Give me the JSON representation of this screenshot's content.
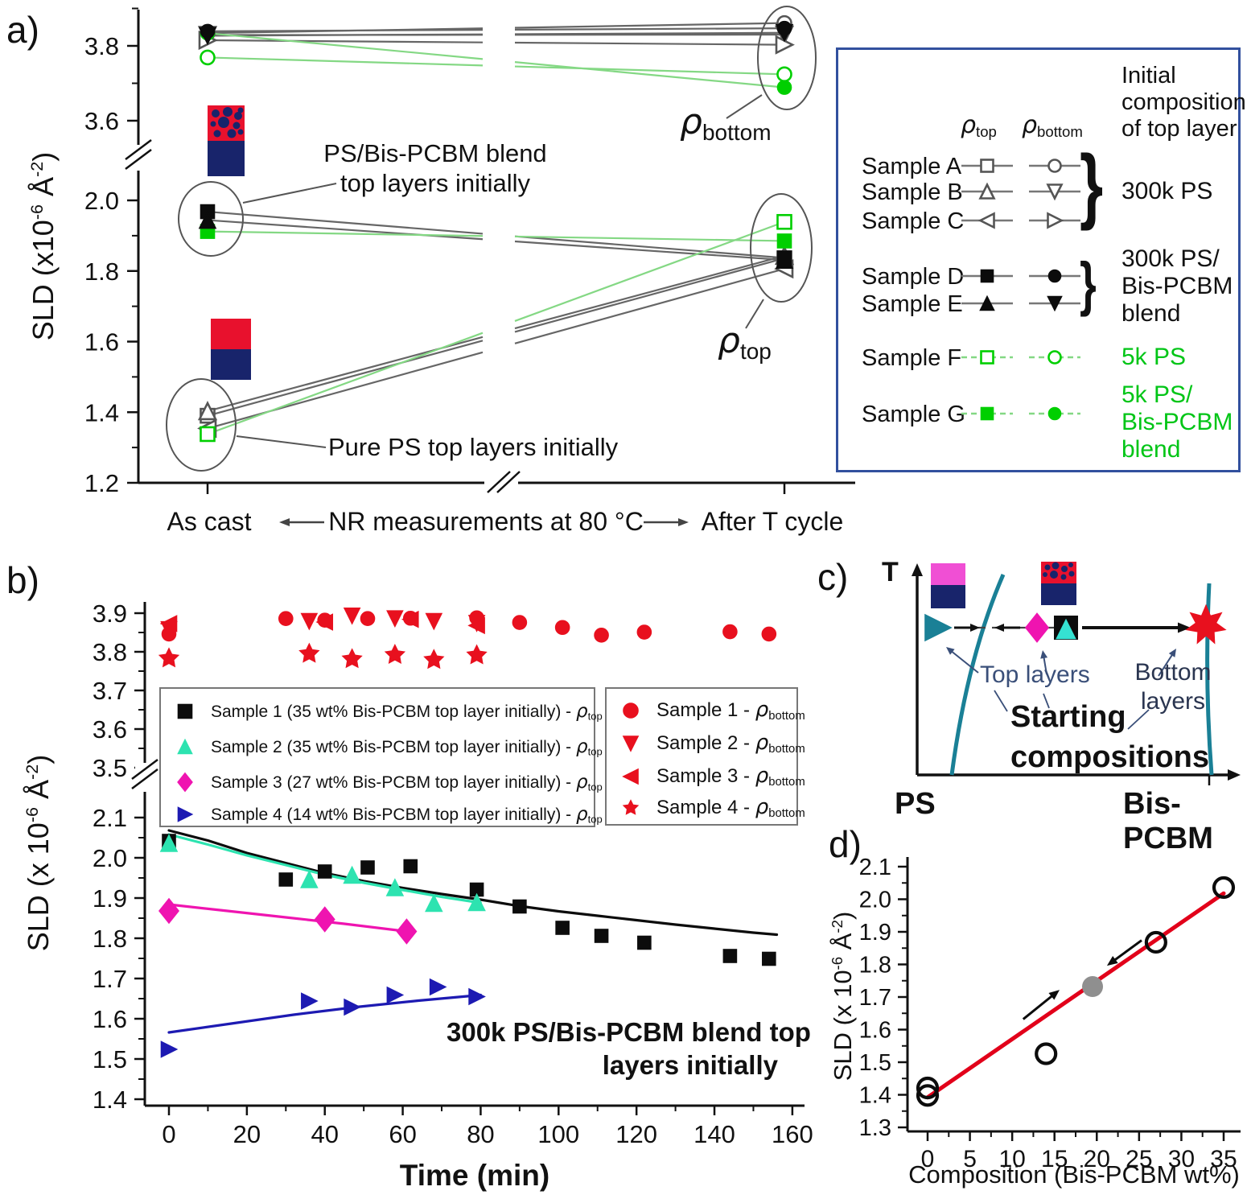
{
  "figure": {
    "colors": {
      "gray": "#666666",
      "gray_marker": "#555555",
      "black": "#0c0c0c",
      "green_line": "#84d884",
      "green": "#00cf00",
      "green_text": "#00c516",
      "red": "#e8101e",
      "red_dark": "#e8112d",
      "red_line": "#e2001a",
      "cyan": "#2de3b0",
      "magenta": "#ef14b0",
      "blue": "#1d1ab2",
      "teal": "#1a8096",
      "navy": "#18246b",
      "pink": "#f04fd4",
      "slate": "#3a4f79",
      "legend_border": "#32509e",
      "gray_point": "#8f8f8f"
    }
  },
  "panel_a": {
    "label": "a)",
    "y_title": {
      "p1": "SLD (x10",
      "s1": "-6",
      "p2": " Å",
      "s2": "-2",
      "p3": ")"
    },
    "x_axis": {
      "left": "As cast",
      "center": "NR measurements at 80 °C",
      "right": "After T cycle"
    },
    "ann_blend": {
      "l1": "PS/Bis-PCBM blend",
      "l2": "top layers initially"
    },
    "ann_pure": "Pure PS top layers initially",
    "rho_bottom": {
      "base": "ρ",
      "sub": "bottom"
    },
    "rho_top": {
      "base": "ρ",
      "sub": "top"
    },
    "legend": {
      "header_top": {
        "base": "ρ",
        "sub": "top"
      },
      "header_bottom": {
        "base": "ρ",
        "sub": "bottom"
      },
      "header_right": {
        "l1": "Initial",
        "l2": "composition",
        "l3": "of top layer"
      },
      "brace": "}",
      "rows": [
        {
          "name": "Sample A",
          "m_top": "square-open",
          "m_bot": "circle-open",
          "color_key": "gray",
          "dashed": false
        },
        {
          "name": "Sample B",
          "m_top": "tri-up-open",
          "m_bot": "tri-down-open",
          "color_key": "gray",
          "dashed": false
        },
        {
          "name": "Sample C",
          "m_top": "tri-left-open",
          "m_bot": "tri-right-open",
          "color_key": "gray",
          "dashed": false
        },
        {
          "name": "Sample D",
          "m_top": "square",
          "m_bot": "circle",
          "color_key": "black",
          "dashed": false
        },
        {
          "name": "Sample E",
          "m_top": "tri-up",
          "m_bot": "tri-down",
          "color_key": "black",
          "dashed": false
        },
        {
          "name": "Sample F",
          "m_top": "square-open",
          "m_bot": "circle-open",
          "color_key": "green",
          "dashed": true
        },
        {
          "name": "Sample G",
          "m_top": "square",
          "m_bot": "circle",
          "color_key": "green",
          "dashed": true
        }
      ],
      "groups": [
        {
          "lines": [
            "300k PS"
          ],
          "green": false
        },
        {
          "lines": [
            "300k PS/",
            "Bis-PCBM",
            "blend"
          ],
          "green": false
        },
        {
          "lines": [
            "5k PS"
          ],
          "green": true
        },
        {
          "lines": [
            "5k PS/",
            "Bis-PCBM",
            "blend"
          ],
          "green": true
        }
      ]
    }
  },
  "panel_b": {
    "label": "b)",
    "y_title": {
      "p1": "SLD (x 10",
      "s1": "-6",
      "p2": " Å",
      "s2": "-2",
      "p3": ")"
    },
    "x_title": "Time (min)",
    "ann": {
      "l1": "300k PS/Bis-PCBM blend top",
      "l2": "layers initially"
    },
    "legend_left": {
      "rows": [
        {
          "marker": "square",
          "color_key": "black",
          "label": "Sample 1 (35 wt% Bis-PCBM top layer initially) - ",
          "rho": "ρ",
          "rho_sub": "top"
        },
        {
          "marker": "tri-up",
          "color_key": "cyan",
          "label": "Sample 2 (35 wt% Bis-PCBM top layer initially) - ",
          "rho": "ρ",
          "rho_sub": "top"
        },
        {
          "marker": "diamond",
          "color_key": "magenta",
          "label": "Sample 3 (27 wt% Bis-PCBM top layer initially) - ",
          "rho": "ρ",
          "rho_sub": "top"
        },
        {
          "marker": "tri-right",
          "color_key": "blue",
          "label": "Sample 4 (14 wt% Bis-PCBM top layer initially) - ",
          "rho": "ρ",
          "rho_sub": "top"
        }
      ]
    },
    "legend_right": {
      "rows": [
        {
          "marker": "circle",
          "color_key": "red",
          "label": "Sample 1 - ",
          "rho": "ρ",
          "rho_sub": "bottom"
        },
        {
          "marker": "tri-down",
          "color_key": "red",
          "label": "Sample 2  - ",
          "rho": "ρ",
          "rho_sub": "bottom"
        },
        {
          "marker": "tri-left",
          "color_key": "red",
          "label": "Sample 3  - ",
          "rho": "ρ",
          "rho_sub": "bottom"
        },
        {
          "marker": "star",
          "color_key": "red",
          "label": "Sample 4  - ",
          "rho": "ρ",
          "rho_sub": "bottom"
        }
      ]
    }
  },
  "panel_c": {
    "label": "c)",
    "t": "T",
    "ps": "PS",
    "bis": "Bis-PCBM",
    "top_layers": "Top layers",
    "bottom_layers": {
      "l1": "Bottom",
      "l2": "layers"
    },
    "starting": {
      "l1": "Starting",
      "l2": "compositions"
    }
  },
  "panel_d": {
    "label": "d)",
    "y_title": {
      "p1": "SLD (x 10",
      "s1": "-6",
      "p2": " Å",
      "s2": "-2",
      "p3": ")"
    },
    "x_title": "Composition (Bis-PCBM wt%)"
  },
  "chart_data": [
    {
      "id": "a",
      "type": "line",
      "x_categories": [
        "As cast",
        "After T cycle"
      ],
      "ylabel": "SLD (x10-6 A-2)",
      "y_axis": {
        "broken": true,
        "upper_major": [
          3.8,
          3.6
        ],
        "upper_minor": [
          3.9,
          3.7
        ],
        "lower_major": [
          2.0,
          1.8,
          1.6,
          1.4,
          1.2
        ],
        "lower_minor": [
          1.9,
          1.7,
          1.5,
          1.3
        ]
      },
      "series": [
        {
          "sample": "A",
          "group": "300k PS",
          "color": "gray",
          "top": {
            "marker": "square-open",
            "as_cast": 1.39,
            "after": 1.836
          },
          "bottom": {
            "marker": "circle-open",
            "as_cast": 3.834,
            "after": 3.861
          }
        },
        {
          "sample": "B",
          "group": "300k PS",
          "color": "gray",
          "top": {
            "marker": "tri-up-open",
            "as_cast": 1.403,
            "after": 1.843
          },
          "bottom": {
            "marker": "tri-down-open",
            "as_cast": 3.829,
            "after": 3.83
          }
        },
        {
          "sample": "C",
          "group": "300k PS",
          "color": "gray",
          "top": {
            "marker": "tri-left-open",
            "as_cast": 1.354,
            "after": 1.806
          },
          "bottom": {
            "marker": "tri-right-open",
            "as_cast": 3.815,
            "after": 3.803
          }
        },
        {
          "sample": "D",
          "group": "300k PS/Bis-PCBM blend",
          "color": "black",
          "top": {
            "marker": "square",
            "as_cast": 1.968,
            "after": 1.837
          },
          "bottom": {
            "marker": "circle",
            "as_cast": 3.839,
            "after": 3.847
          }
        },
        {
          "sample": "E",
          "group": "300k PS/Bis-PCBM blend",
          "color": "black",
          "top": {
            "marker": "tri-up",
            "as_cast": 1.944,
            "after": 1.831
          },
          "bottom": {
            "marker": "tri-down",
            "as_cast": 3.827,
            "after": 3.835
          }
        },
        {
          "sample": "F",
          "group": "5k PS",
          "color": "green",
          "top": {
            "marker": "square-open",
            "as_cast": 1.338,
            "after": 1.939
          },
          "bottom": {
            "marker": "circle-open",
            "as_cast": 3.769,
            "after": 3.724
          }
        },
        {
          "sample": "G",
          "group": "5k PS/Bis-PCBM blend",
          "color": "green",
          "top": {
            "marker": "square",
            "as_cast": 1.912,
            "after": 1.885
          },
          "bottom": {
            "marker": "circle",
            "as_cast": 3.834,
            "after": 3.689
          }
        }
      ]
    },
    {
      "id": "b",
      "type": "scatter",
      "xlabel": "Time (min)",
      "ylabel": "SLD (x 10-6 A-2)",
      "y_upper_major": [
        3.9,
        3.8,
        3.7,
        3.6,
        3.5
      ],
      "y_upper_minor": [
        3.85,
        3.75,
        3.65,
        3.55
      ],
      "y_lower_major": [
        2.1,
        2.0,
        1.9,
        1.8,
        1.7,
        1.6,
        1.5,
        1.4
      ],
      "y_lower_minor": [
        2.05,
        1.95,
        1.85,
        1.75,
        1.65,
        1.55,
        1.45
      ],
      "x_major": [
        0,
        20,
        40,
        60,
        80,
        100,
        120,
        140,
        160
      ],
      "x_minor": [
        10,
        30,
        50,
        70,
        90,
        110,
        130,
        150
      ],
      "series_top": [
        {
          "name": "Sample 1",
          "marker": "square",
          "color_key": "black",
          "points": [
            [
              0,
              2.042
            ],
            [
              30,
              1.946
            ],
            [
              40,
              1.966
            ],
            [
              51,
              1.976
            ],
            [
              62,
              1.979
            ],
            [
              79,
              1.921
            ],
            [
              90,
              1.879
            ],
            [
              101,
              1.826
            ],
            [
              111,
              1.806
            ],
            [
              122,
              1.789
            ],
            [
              144,
              1.756
            ],
            [
              154,
              1.749
            ]
          ],
          "fit": [
            [
              0,
              2.068
            ],
            [
              10,
              2.043
            ],
            [
              20,
              2.012
            ],
            [
              30,
              1.987
            ],
            [
              40,
              1.962
            ],
            [
              50,
              1.942
            ],
            [
              60,
              1.925
            ],
            [
              70,
              1.91
            ],
            [
              80,
              1.896
            ],
            [
              90,
              1.88
            ],
            [
              100,
              1.867
            ],
            [
              110,
              1.856
            ],
            [
              120,
              1.845
            ],
            [
              130,
              1.834
            ],
            [
              140,
              1.824
            ],
            [
              150,
              1.814
            ],
            [
              156,
              1.809
            ]
          ]
        },
        {
          "name": "Sample 2",
          "marker": "tri-up",
          "color_key": "cyan",
          "points": [
            [
              0,
              2.036
            ],
            [
              36,
              1.946
            ],
            [
              47,
              1.957
            ],
            [
              58,
              1.926
            ],
            [
              68,
              1.887
            ],
            [
              79,
              1.889
            ]
          ],
          "fit": [
            [
              0,
              2.058
            ],
            [
              10,
              2.033
            ],
            [
              20,
              2.006
            ],
            [
              30,
              1.982
            ],
            [
              40,
              1.958
            ],
            [
              50,
              1.938
            ],
            [
              60,
              1.92
            ],
            [
              70,
              1.903
            ],
            [
              80,
              1.888
            ]
          ]
        },
        {
          "name": "Sample 3",
          "marker": "diamond",
          "color_key": "magenta",
          "points": [
            [
              0,
              1.868
            ],
            [
              40,
              1.847
            ],
            [
              61,
              1.817
            ]
          ],
          "fit": [
            [
              0,
              1.884
            ],
            [
              15,
              1.868
            ],
            [
              30,
              1.852
            ],
            [
              45,
              1.836
            ],
            [
              62,
              1.816
            ]
          ]
        },
        {
          "name": "Sample 4",
          "marker": "tri-right",
          "color_key": "blue",
          "points": [
            [
              0,
              1.524
            ],
            [
              36,
              1.644
            ],
            [
              47,
              1.629
            ],
            [
              58,
              1.659
            ],
            [
              69,
              1.679
            ],
            [
              79,
              1.655
            ]
          ],
          "fit": [
            [
              0,
              1.566
            ],
            [
              16,
              1.588
            ],
            [
              32,
              1.61
            ],
            [
              48,
              1.629
            ],
            [
              64,
              1.645
            ],
            [
              80,
              1.659
            ]
          ]
        }
      ],
      "series_bottom": [
        {
          "name": "Sample 1",
          "marker": "circle",
          "points": [
            [
              0,
              3.846
            ],
            [
              30,
              3.886
            ],
            [
              40,
              3.882
            ],
            [
              51,
              3.886
            ],
            [
              62,
              3.887
            ],
            [
              79,
              3.888
            ],
            [
              90,
              3.876
            ],
            [
              101,
              3.863
            ],
            [
              111,
              3.843
            ],
            [
              122,
              3.851
            ],
            [
              144,
              3.852
            ],
            [
              154,
              3.846
            ]
          ]
        },
        {
          "name": "Sample 2",
          "marker": "tri-down",
          "points": [
            [
              0,
              3.858
            ],
            [
              36,
              3.879
            ],
            [
              47,
              3.893
            ],
            [
              58,
              3.886
            ],
            [
              68,
              3.879
            ],
            [
              79,
              3.874
            ]
          ]
        },
        {
          "name": "Sample 3",
          "marker": "tri-left",
          "points": [
            [
              0,
              3.873
            ],
            [
              40,
              3.877
            ],
            [
              62,
              3.884
            ],
            [
              79,
              3.868
            ]
          ]
        },
        {
          "name": "Sample 4",
          "marker": "star",
          "points": [
            [
              0,
              3.783
            ],
            [
              36,
              3.795
            ],
            [
              47,
              3.781
            ],
            [
              58,
              3.792
            ],
            [
              68,
              3.779
            ],
            [
              79,
              3.791
            ]
          ]
        }
      ]
    },
    {
      "id": "c",
      "type": "diagram",
      "xlabel_left": "PS",
      "xlabel_right": "Bis-PCBM",
      "ylabel": "T"
    },
    {
      "id": "d",
      "type": "scatter",
      "xlabel": "Composition (Bis-PCBM wt%)",
      "ylabel": "SLD (x 10-6 A-2)",
      "y_major": [
        1.3,
        1.4,
        1.5,
        1.6,
        1.7,
        1.8,
        1.9,
        2.0,
        2.1
      ],
      "x_major": [
        0,
        5,
        10,
        15,
        20,
        25,
        30,
        35
      ],
      "points_open": [
        [
          0,
          1.421
        ],
        [
          0,
          1.398
        ],
        [
          14,
          1.526
        ],
        [
          27,
          1.868
        ],
        [
          35,
          2.036
        ]
      ],
      "point_gray": [
        19.5,
        1.732
      ],
      "fit_line": [
        [
          0,
          1.392
        ],
        [
          35,
          2.018
        ]
      ],
      "arrows": [
        {
          "from": [
            11.3,
            1.632
          ],
          "to": [
            15.6,
            1.722
          ]
        },
        {
          "from": [
            25.3,
            1.874
          ],
          "to": [
            21.2,
            1.796
          ]
        }
      ]
    }
  ]
}
